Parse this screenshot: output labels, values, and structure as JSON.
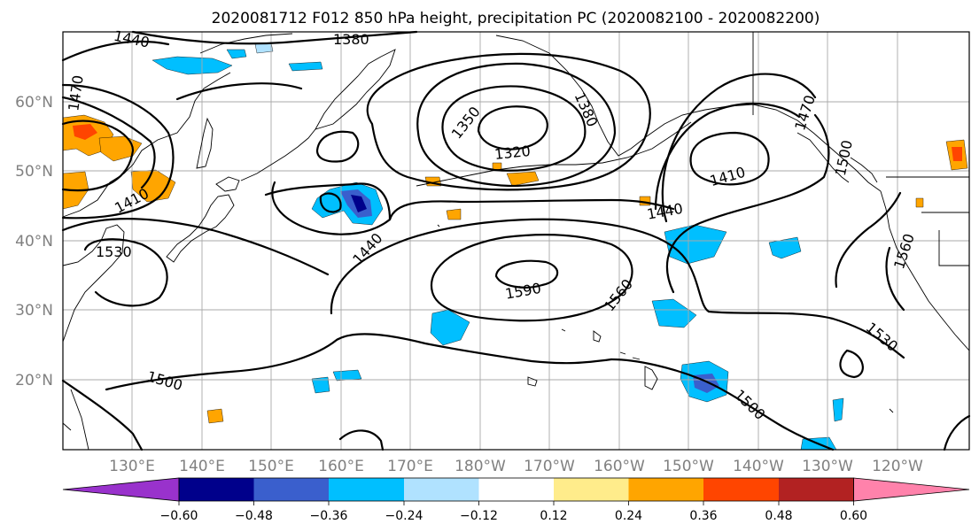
{
  "title": "2020081712 F012 850 hPa height, precipitation PC (2020082100 - 2020082200)",
  "lat_labels": [
    "60°N",
    "50°N",
    "40°N",
    "30°N",
    "20°N"
  ],
  "lon_labels": [
    "130°E",
    "140°E",
    "150°E",
    "160°E",
    "170°E",
    "180°W",
    "170°W",
    "160°W",
    "150°W",
    "140°W",
    "130°W",
    "120°W"
  ],
  "contour_labels": [
    "1440",
    "1380",
    "1350",
    "1320",
    "1380",
    "1410",
    "1410",
    "1440",
    "1440",
    "1470",
    "1530",
    "1590",
    "1560",
    "1500",
    "1500",
    "1530",
    "1500",
    "1560",
    "1470"
  ],
  "colorbar": {
    "colors": [
      "#9932cc",
      "#00008b",
      "#3a5fcd",
      "#00bfff",
      "#b0e2ff",
      "#ffffff",
      "#ffec8b",
      "#ffa500",
      "#ff4500",
      "#b22222",
      "#ff82ab"
    ],
    "tick_labels": [
      "−0.60",
      "−0.48",
      "−0.36",
      "−0.24",
      "−0.12",
      "0.12",
      "0.24",
      "0.36",
      "0.48",
      "0.60"
    ]
  },
  "shading": {
    "negative_light": "#b0e2ff",
    "negative_mid": "#00bfff",
    "negative_strong": "#3a5fcd",
    "negative_max": "#00008b",
    "positive_light": "#ffec8b",
    "positive_mid": "#ffa500",
    "positive_strong": "#ff4500"
  }
}
